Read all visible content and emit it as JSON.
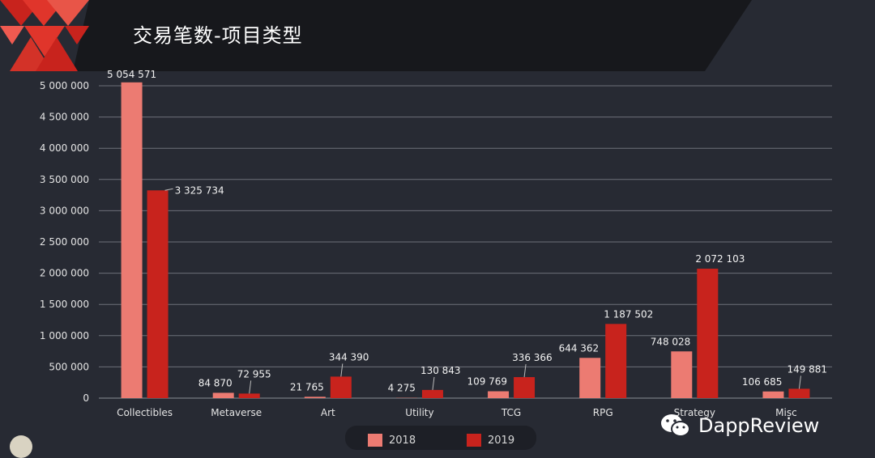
{
  "header": {
    "title": "交易笔数-项目类型"
  },
  "colors": {
    "series_2018": "#ec7b72",
    "series_2019": "#c8231d",
    "accent": "#e0352b"
  },
  "watermark": {
    "text": "DappReview",
    "icon": "wechat-icon"
  },
  "chart_data": {
    "type": "bar",
    "categories": [
      "Collectibles",
      "Metaverse",
      "Art",
      "Utility",
      "TCG",
      "RPG",
      "Strategy",
      "Misc"
    ],
    "series": [
      {
        "name": "2018",
        "values": [
          5054571,
          84870,
          21765,
          4275,
          109769,
          644362,
          748028,
          106685
        ],
        "labels": [
          "5 054 571",
          "84 870",
          "21 765",
          "4 275",
          "109 769",
          "644 362",
          "748 028",
          "106 685"
        ]
      },
      {
        "name": "2019",
        "values": [
          3325734,
          72955,
          344390,
          130843,
          336366,
          1187502,
          2072103,
          149881
        ],
        "labels": [
          "3 325 734",
          "72 955",
          "344 390",
          "130 843",
          "336 366",
          "1 187 502",
          "2 072 103",
          "149 881"
        ]
      }
    ],
    "ylim": [
      0,
      5000000
    ],
    "yticks": [
      "0",
      "500 000",
      "1 000 000",
      "1 500 000",
      "2 000 000",
      "2 500 000",
      "3 000 000",
      "3 500 000",
      "4 000 000",
      "4 500 000",
      "5 000 000"
    ],
    "grid": true,
    "legend": "bottom"
  }
}
